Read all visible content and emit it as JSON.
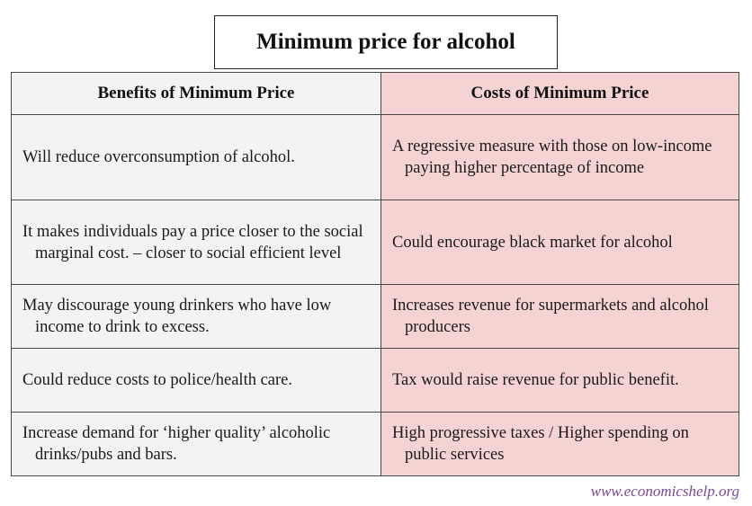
{
  "title": "Minimum price for alcohol",
  "table": {
    "headers": {
      "benefits": "Benefits of Minimum Price",
      "costs": "Costs of Minimum Price"
    },
    "rows": [
      {
        "benefit": "Will reduce overconsumption of alcohol.",
        "cost": "A regressive measure with those on low-income paying higher percentage of income"
      },
      {
        "benefit": "It makes individuals pay a price closer to the social marginal cost. – closer to social efficient level",
        "cost": "Could encourage black market for alcohol"
      },
      {
        "benefit": "May discourage young drinkers who have low income to drink to excess.",
        "cost": "Increases revenue for supermarkets and alcohol producers"
      },
      {
        "benefit": "Could reduce costs to police/health care.",
        "cost": "Tax would raise revenue for public benefit."
      },
      {
        "benefit": "Increase demand for ‘higher quality’ alcoholic drinks/pubs and bars.",
        "cost": "High progressive taxes / Higher spending on public services"
      }
    ]
  },
  "credit": "www.economicshelp.org",
  "colors": {
    "benefit_bg": "#f3f3f3",
    "cost_bg": "#f6d3d3",
    "credit": "#7a4a94"
  }
}
